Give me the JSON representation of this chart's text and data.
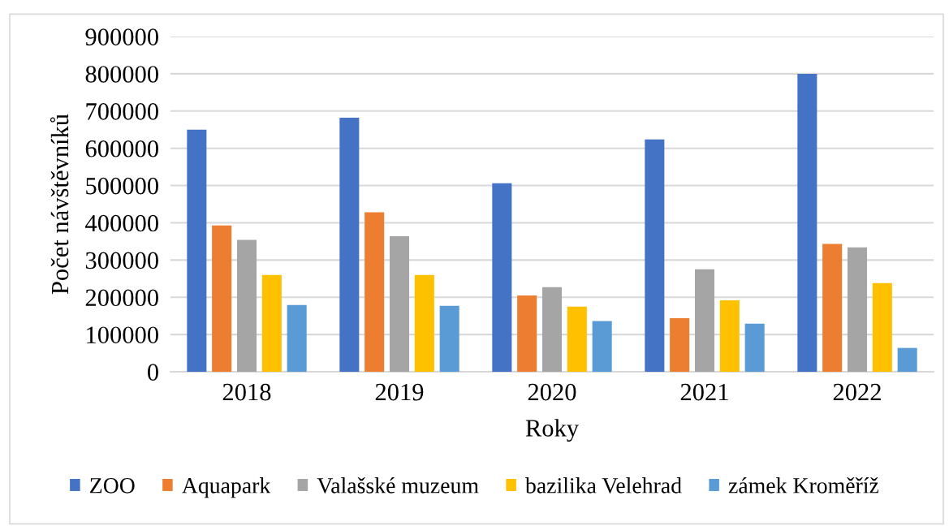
{
  "chart_data": {
    "type": "bar",
    "xlabel": "Roky",
    "ylabel": "Počet návštěvníků",
    "categories": [
      "2018",
      "2019",
      "2020",
      "2021",
      "2022"
    ],
    "series": [
      {
        "name": "ZOO",
        "color": "#4472c4",
        "values": [
          650000,
          682000,
          506000,
          624000,
          800000
        ]
      },
      {
        "name": "Aquapark",
        "color": "#ed7d31",
        "values": [
          393000,
          428000,
          205000,
          144000,
          343000
        ]
      },
      {
        "name": "Valašské muzeum",
        "color": "#a5a5a5",
        "values": [
          354000,
          364000,
          227000,
          275000,
          334000
        ]
      },
      {
        "name": "bazilika Velehrad",
        "color": "#ffc000",
        "values": [
          260000,
          260000,
          175000,
          192000,
          238000
        ]
      },
      {
        "name": "zámek Kroměříž",
        "color": "#5b9bd5",
        "values": [
          179000,
          177000,
          136000,
          129000,
          64000
        ]
      }
    ],
    "ylim": [
      0,
      900000
    ],
    "yticks": [
      0,
      100000,
      200000,
      300000,
      400000,
      500000,
      600000,
      700000,
      800000,
      900000
    ],
    "grid": "y",
    "legend": "bottom"
  }
}
